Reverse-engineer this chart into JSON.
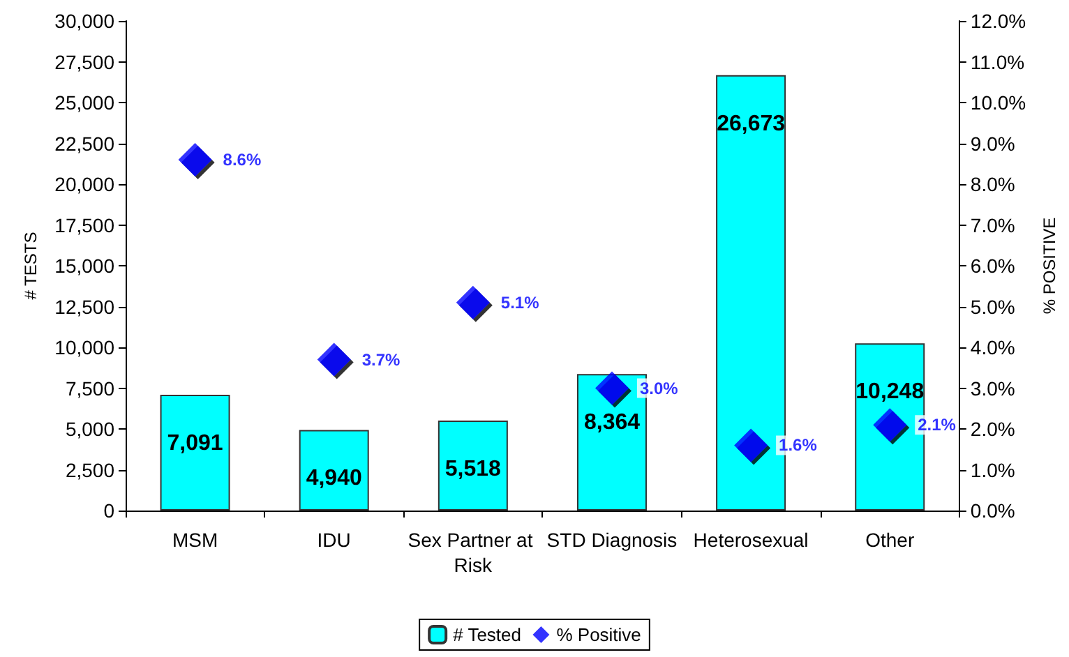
{
  "chart_data": {
    "type": "bar",
    "categories": [
      "MSM",
      "IDU",
      "Sex Partner at Risk",
      "STD Diagnosis",
      "Heterosexual",
      "Other"
    ],
    "ylabel": "# TESTS",
    "y2label": "% POSITIVE",
    "ylim": [
      0,
      30000
    ],
    "yticks": [
      {
        "value": 0,
        "label": "0"
      },
      {
        "value": 2500,
        "label": "2,500"
      },
      {
        "value": 5000,
        "label": "5,000"
      },
      {
        "value": 7500,
        "label": "7,500"
      },
      {
        "value": 10000,
        "label": "10,000"
      },
      {
        "value": 12500,
        "label": "12,500"
      },
      {
        "value": 15000,
        "label": "15,000"
      },
      {
        "value": 17500,
        "label": "17,500"
      },
      {
        "value": 20000,
        "label": "20,000"
      },
      {
        "value": 22500,
        "label": "22,500"
      },
      {
        "value": 25000,
        "label": "25,000"
      },
      {
        "value": 27500,
        "label": "27,500"
      },
      {
        "value": 30000,
        "label": "30,000"
      }
    ],
    "y2lim": [
      0,
      12
    ],
    "y2ticks": [
      {
        "value": 0,
        "label": "0.0%"
      },
      {
        "value": 1,
        "label": "1.0%"
      },
      {
        "value": 2,
        "label": "2.0%"
      },
      {
        "value": 3,
        "label": "3.0%"
      },
      {
        "value": 4,
        "label": "4.0%"
      },
      {
        "value": 5,
        "label": "5.0%"
      },
      {
        "value": 6,
        "label": "6.0%"
      },
      {
        "value": 7,
        "label": "7.0%"
      },
      {
        "value": 8,
        "label": "8.0%"
      },
      {
        "value": 9,
        "label": "9.0%"
      },
      {
        "value": 10,
        "label": "10.0%"
      },
      {
        "value": 11,
        "label": "11.0%"
      },
      {
        "value": 12,
        "label": "12.0%"
      }
    ],
    "series": [
      {
        "name": "# Tested",
        "color": "#00ffff",
        "values": [
          7091,
          4940,
          5518,
          8364,
          26673,
          10248
        ],
        "value_labels": [
          "7,091",
          "4,940",
          "5,518",
          "8,364",
          "26,673",
          "10,248"
        ]
      },
      {
        "name": "% Positive",
        "type": "scatter",
        "axis": "y2",
        "marker": "diamond",
        "color": "#0000ff",
        "values": [
          8.6,
          3.7,
          5.1,
          3.0,
          1.6,
          2.1
        ],
        "value_labels": [
          "8.6%",
          "3.7%",
          "5.1%",
          "3.0%",
          "1.6%",
          "2.1%"
        ]
      }
    ],
    "grid": false,
    "legend": "bottom"
  }
}
